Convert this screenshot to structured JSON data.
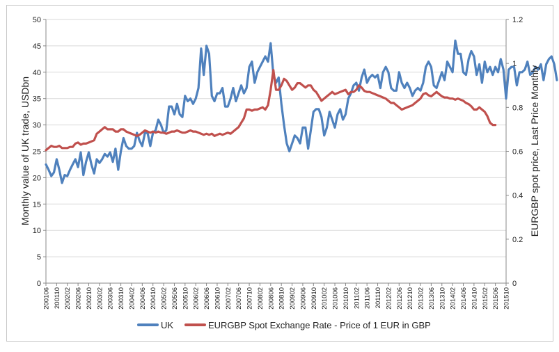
{
  "chart_data": {
    "type": "line",
    "ylabel": "Monthly value of UK trade, USDbn",
    "y2label": "EURGBP spot price, Last Price Monthly",
    "ylim": [
      0,
      50
    ],
    "y2lim": [
      0,
      1.2
    ],
    "yticks": [
      "0",
      "5",
      "10",
      "15",
      "20",
      "25",
      "30",
      "35",
      "40",
      "45",
      "50"
    ],
    "y2ticks": [
      "0",
      "0.2",
      "0.4",
      "0.6",
      "0.8",
      "1",
      "1.2"
    ],
    "grid": true,
    "legend_position": "bottom",
    "x_ticks": [
      "200106",
      "200110",
      "200202",
      "200206",
      "200210",
      "200302",
      "200306",
      "200310",
      "200402",
      "200406",
      "200410",
      "200502",
      "200506",
      "200510",
      "200602",
      "200606",
      "200610",
      "200702",
      "200706",
      "200710",
      "200802",
      "200806",
      "200810",
      "200902",
      "200906",
      "200910",
      "201002",
      "201006",
      "201010",
      "201102",
      "201106",
      "201110",
      "201202",
      "201206",
      "201210",
      "201302",
      "201306",
      "201310",
      "201402",
      "201406",
      "201410",
      "201502",
      "201506",
      "201510"
    ],
    "series": [
      {
        "name": "UK",
        "axis": "left",
        "color": "#4f81bd",
        "start": "2001-06",
        "values": [
          22.5,
          21.5,
          20.3,
          21,
          23.5,
          21.5,
          19,
          20.5,
          20.3,
          21.5,
          22.5,
          23.5,
          22,
          24.8,
          20.5,
          23,
          24.8,
          22.5,
          20.8,
          23.5,
          22.8,
          23.5,
          24.5,
          24,
          24.8,
          23,
          25.5,
          21.5,
          25,
          27.5,
          26,
          25.5,
          25.5,
          26,
          28.5,
          27,
          26,
          28.5,
          28.5,
          26,
          28.5,
          29,
          31,
          30,
          28.5,
          29,
          33.5,
          33.5,
          32,
          34,
          32,
          31.5,
          35.5,
          34.5,
          35,
          34,
          35,
          37,
          44.5,
          39.5,
          45,
          43.5,
          35.5,
          34.5,
          36,
          36,
          37,
          33.5,
          33.5,
          35,
          37,
          34.5,
          36,
          37.5,
          36,
          37,
          41,
          42,
          38,
          40,
          41,
          42,
          43,
          42,
          45.5,
          39.5,
          38,
          39,
          34,
          30,
          26.5,
          25,
          26.5,
          28,
          27.5,
          26.5,
          29.5,
          29.5,
          25.5,
          29,
          32.5,
          33,
          33,
          31.5,
          28,
          29.5,
          32.5,
          31,
          29.5,
          32,
          33,
          31,
          32,
          35,
          36,
          37.5,
          38,
          36.5,
          39,
          40.5,
          38,
          39,
          39.5,
          39,
          39.5,
          37,
          40,
          41,
          40,
          37,
          36.5,
          36.5,
          40,
          38,
          37,
          38,
          37,
          35.5,
          36.5,
          37,
          36.5,
          38,
          41,
          42,
          41,
          37.5,
          37,
          38.5,
          40,
          38.5,
          42,
          41,
          40,
          46,
          43.5,
          43.5,
          40,
          39.5,
          42.5,
          44,
          43,
          39.5,
          41.5,
          38,
          42,
          40,
          41,
          39.5,
          41,
          40,
          42.5,
          40.5,
          35,
          40.5,
          41,
          41,
          37.5,
          40,
          40,
          40.5,
          42,
          39.5,
          40,
          41,
          40.5,
          41.5,
          38.5,
          41.5,
          42.5,
          43,
          41.5,
          38.5
        ]
      },
      {
        "name": "EURGBP Spot Exchange Rate - Price of 1 EUR in GBP",
        "axis": "right",
        "color": "#c0504d",
        "start": "2001-06",
        "values": [
          0.605,
          0.615,
          0.625,
          0.62,
          0.62,
          0.625,
          0.615,
          0.615,
          0.615,
          0.62,
          0.62,
          0.635,
          0.64,
          0.63,
          0.635,
          0.635,
          0.64,
          0.645,
          0.65,
          0.68,
          0.69,
          0.7,
          0.71,
          0.7,
          0.7,
          0.7,
          0.69,
          0.69,
          0.7,
          0.7,
          0.69,
          0.685,
          0.68,
          0.675,
          0.67,
          0.675,
          0.685,
          0.695,
          0.69,
          0.685,
          0.69,
          0.685,
          0.69,
          0.685,
          0.685,
          0.68,
          0.685,
          0.69,
          0.69,
          0.695,
          0.69,
          0.685,
          0.685,
          0.69,
          0.695,
          0.69,
          0.69,
          0.685,
          0.68,
          0.675,
          0.68,
          0.675,
          0.68,
          0.67,
          0.675,
          0.68,
          0.675,
          0.68,
          0.685,
          0.68,
          0.69,
          0.7,
          0.71,
          0.73,
          0.75,
          0.79,
          0.79,
          0.785,
          0.79,
          0.79,
          0.795,
          0.8,
          0.79,
          0.81,
          0.88,
          0.97,
          0.88,
          0.88,
          0.9,
          0.93,
          0.92,
          0.9,
          0.88,
          0.89,
          0.91,
          0.91,
          0.9,
          0.89,
          0.9,
          0.9,
          0.88,
          0.87,
          0.85,
          0.83,
          0.84,
          0.85,
          0.86,
          0.87,
          0.86,
          0.865,
          0.87,
          0.875,
          0.88,
          0.86,
          0.87,
          0.87,
          0.88,
          0.9,
          0.89,
          0.875,
          0.87,
          0.87,
          0.865,
          0.86,
          0.855,
          0.85,
          0.845,
          0.84,
          0.83,
          0.82,
          0.82,
          0.81,
          0.8,
          0.79,
          0.795,
          0.8,
          0.805,
          0.81,
          0.82,
          0.83,
          0.84,
          0.86,
          0.865,
          0.855,
          0.85,
          0.86,
          0.87,
          0.86,
          0.85,
          0.845,
          0.845,
          0.84,
          0.84,
          0.835,
          0.84,
          0.835,
          0.83,
          0.82,
          0.815,
          0.805,
          0.79,
          0.79,
          0.8,
          0.79,
          0.78,
          0.76,
          0.73,
          0.72,
          0.72
        ]
      }
    ]
  }
}
